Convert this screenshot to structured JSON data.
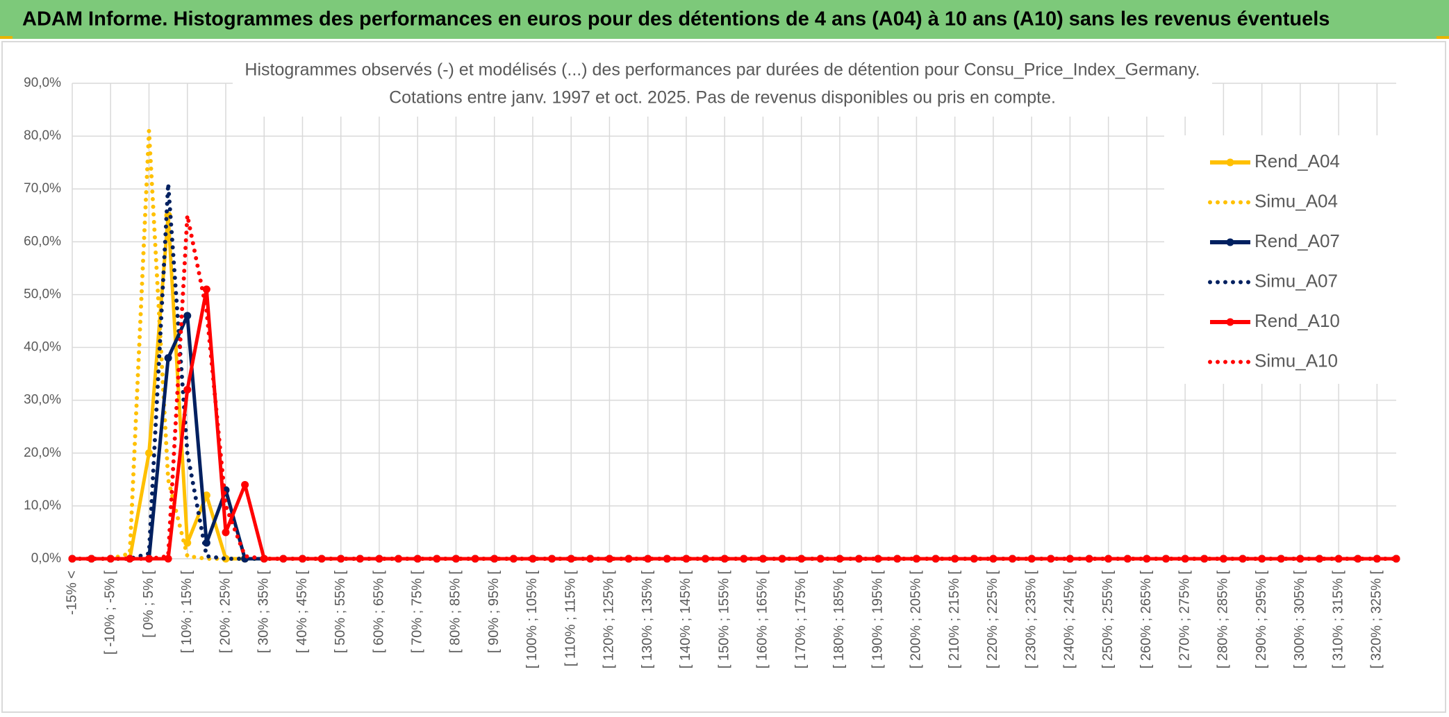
{
  "header": {
    "title": "ADAM Informe. Histogrammes des performances en euros pour des détentions de 4 ans (A04) à 10 ans (A10) sans les revenus éventuels"
  },
  "chart_data": {
    "type": "line",
    "title_lines": [
      "Histogrammes observés (-) et modélisés (...) des performances par durées de détention pour Consu_Price_Index_Germany.",
      "Cotations entre janv. 1997 et oct. 2025. Pas de revenus disponibles ou pris en compte."
    ],
    "categories": [
      "-15% <",
      null,
      "[ -10% ; -5% [",
      null,
      "[ 0% ; 5% [",
      null,
      "[ 10% ; 15% [",
      null,
      "[ 20% ; 25% [",
      null,
      "[ 30% ; 35% [",
      null,
      "[ 40% ; 45% [",
      null,
      "[ 50% ; 55% [",
      null,
      "[ 60% ; 65% [",
      null,
      "[ 70% ; 75% [",
      null,
      "[ 80% ; 85% [",
      null,
      "[ 90% ; 95% [",
      null,
      "[ 100% ; 105% [",
      null,
      "[ 110% ; 115% [",
      null,
      "[ 120% ; 125% [",
      null,
      "[ 130% ; 135% [",
      null,
      "[ 140% ; 145% [",
      null,
      "[ 150% ; 155% [",
      null,
      "[ 160% ; 165% [",
      null,
      "[ 170% ; 175% [",
      null,
      "[ 180% ; 185% [",
      null,
      "[ 190% ; 195% [",
      null,
      "[ 200% ; 205% [",
      null,
      "[ 210% ; 215% [",
      null,
      "[ 220% ; 225% [",
      null,
      "[ 230% ; 235% [",
      null,
      "[ 240% ; 245% [",
      null,
      "[ 250% ; 255% [",
      null,
      "[ 260% ; 265% [",
      null,
      "[ 270% ; 275% [",
      null,
      "[ 280% ; 285% [",
      null,
      "[ 290% ; 295% [",
      null,
      "[ 300% ; 305% [",
      null,
      "[ 310% ; 315% [",
      null,
      "[ 320% ; 325% [",
      null
    ],
    "series": [
      {
        "name": "Rend_A04",
        "color": "#ffc000",
        "style": "solid",
        "markers": true,
        "values": [
          0,
          0,
          0,
          0,
          20,
          65,
          3,
          12,
          0,
          0,
          0,
          0,
          0,
          0,
          0,
          0,
          0,
          0,
          0,
          0,
          0,
          0,
          0,
          0,
          0,
          0,
          0,
          0,
          0,
          0,
          0,
          0,
          0,
          0,
          0,
          0,
          0,
          0,
          0,
          0,
          0,
          0,
          0,
          0,
          0,
          0,
          0,
          0,
          0,
          0,
          0,
          0,
          0,
          0,
          0,
          0,
          0,
          0,
          0,
          0,
          0,
          0,
          0,
          0,
          0,
          0,
          0,
          0,
          0,
          0
        ]
      },
      {
        "name": "Simu_A04",
        "color": "#ffc000",
        "style": "dotted",
        "markers": false,
        "values": [
          0,
          0,
          0,
          1,
          81,
          15,
          0.5,
          0,
          0,
          0,
          0,
          0,
          0,
          0,
          0,
          0,
          0,
          0,
          0,
          0,
          0,
          0,
          0,
          0,
          0,
          0,
          0,
          0,
          0,
          0,
          0,
          0,
          0,
          0,
          0,
          0,
          0,
          0,
          0,
          0,
          0,
          0,
          0,
          0,
          0,
          0,
          0,
          0,
          0,
          0,
          0,
          0,
          0,
          0,
          0,
          0,
          0,
          0,
          0,
          0,
          0,
          0,
          0,
          0,
          0,
          0,
          0,
          0,
          0,
          0
        ]
      },
      {
        "name": "Rend_A07",
        "color": "#002060",
        "style": "solid",
        "markers": true,
        "values": [
          0,
          0,
          0,
          0,
          0,
          38,
          46,
          3,
          13,
          0,
          0,
          0,
          0,
          0,
          0,
          0,
          0,
          0,
          0,
          0,
          0,
          0,
          0,
          0,
          0,
          0,
          0,
          0,
          0,
          0,
          0,
          0,
          0,
          0,
          0,
          0,
          0,
          0,
          0,
          0,
          0,
          0,
          0,
          0,
          0,
          0,
          0,
          0,
          0,
          0,
          0,
          0,
          0,
          0,
          0,
          0,
          0,
          0,
          0,
          0,
          0,
          0,
          0,
          0,
          0,
          0,
          0,
          0,
          0,
          0
        ]
      },
      {
        "name": "Simu_A07",
        "color": "#002060",
        "style": "dotted",
        "markers": false,
        "values": [
          0,
          0,
          0,
          0,
          1,
          71,
          20,
          0.5,
          0,
          0,
          0,
          0,
          0,
          0,
          0,
          0,
          0,
          0,
          0,
          0,
          0,
          0,
          0,
          0,
          0,
          0,
          0,
          0,
          0,
          0,
          0,
          0,
          0,
          0,
          0,
          0,
          0,
          0,
          0,
          0,
          0,
          0,
          0,
          0,
          0,
          0,
          0,
          0,
          0,
          0,
          0,
          0,
          0,
          0,
          0,
          0,
          0,
          0,
          0,
          0,
          0,
          0,
          0,
          0,
          0,
          0,
          0,
          0,
          0,
          0
        ]
      },
      {
        "name": "Rend_A10",
        "color": "#ff0000",
        "style": "solid",
        "markers": true,
        "values": [
          0,
          0,
          0,
          0,
          0,
          0,
          32,
          51,
          5,
          14,
          0,
          0,
          0,
          0,
          0,
          0,
          0,
          0,
          0,
          0,
          0,
          0,
          0,
          0,
          0,
          0,
          0,
          0,
          0,
          0,
          0,
          0,
          0,
          0,
          0,
          0,
          0,
          0,
          0,
          0,
          0,
          0,
          0,
          0,
          0,
          0,
          0,
          0,
          0,
          0,
          0,
          0,
          0,
          0,
          0,
          0,
          0,
          0,
          0,
          0,
          0,
          0,
          0,
          0,
          0,
          0,
          0,
          0,
          0,
          0
        ]
      },
      {
        "name": "Simu_A10",
        "color": "#ff0000",
        "style": "dotted",
        "markers": false,
        "values": [
          0,
          0,
          0,
          0,
          0,
          0.5,
          65,
          47,
          10,
          0.5,
          0,
          0,
          0,
          0,
          0,
          0,
          0,
          0,
          0,
          0,
          0,
          0,
          0,
          0,
          0,
          0,
          0,
          0,
          0,
          0,
          0,
          0,
          0,
          0,
          0,
          0,
          0,
          0,
          0,
          0,
          0,
          0,
          0,
          0,
          0,
          0,
          0,
          0,
          0,
          0,
          0,
          0,
          0,
          0,
          0,
          0,
          0,
          0,
          0,
          0,
          0,
          0,
          0,
          0,
          0,
          0,
          0,
          0,
          0,
          0
        ]
      }
    ],
    "ylim": [
      0,
      90
    ],
    "yticks": [
      {
        "value": 0,
        "label": "0,0%"
      },
      {
        "value": 10,
        "label": "10,0%"
      },
      {
        "value": 20,
        "label": "20,0%"
      },
      {
        "value": 30,
        "label": "30,0%"
      },
      {
        "value": 40,
        "label": "40,0%"
      },
      {
        "value": 50,
        "label": "50,0%"
      },
      {
        "value": 60,
        "label": "60,0%"
      },
      {
        "value": 70,
        "label": "70,0%"
      },
      {
        "value": 80,
        "label": "80,0%"
      },
      {
        "value": 90,
        "label": "90,0%"
      }
    ],
    "grid": true,
    "legend": "right"
  }
}
